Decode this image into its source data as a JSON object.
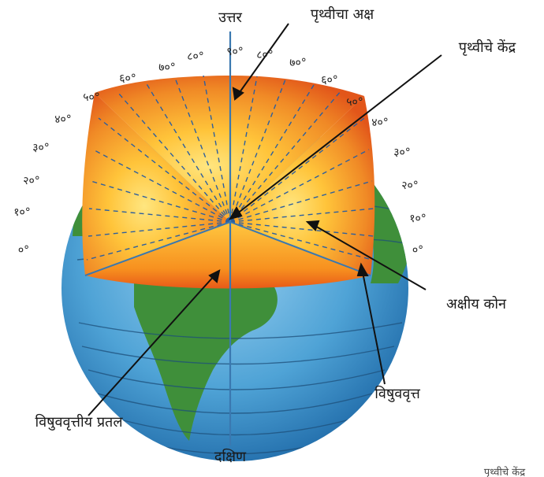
{
  "labels": {
    "north": "उत्तर",
    "south": "दक्षिण",
    "earth_axis": "पृथ्वीचा अक्ष",
    "earth_center": "पृथ्वीचे केंद्र",
    "axial_angle": "अक्षीय कोन",
    "equator": "विषुववृत्त",
    "equatorial_plane": "विषुववृत्तीय प्रतल"
  },
  "left_degrees": [
    "०°",
    "१०°",
    "२०°",
    "३०°",
    "४०°",
    "५०°",
    "६०°",
    "७०°",
    "८०°",
    "९०°"
  ],
  "right_degrees": [
    "८०°",
    "७०°",
    "६०°",
    "५०°",
    "४०°",
    "३०°",
    "२०°",
    "१०°",
    "०°"
  ],
  "bottom_stray_text": "पृथ्वीचे केंद्र",
  "colors": {
    "ocean": "#4fa3d6",
    "land": "#3f8f3a",
    "core_outer": "#e8641c",
    "core_inner": "#ffd24a",
    "axis": "#3a78b0"
  }
}
